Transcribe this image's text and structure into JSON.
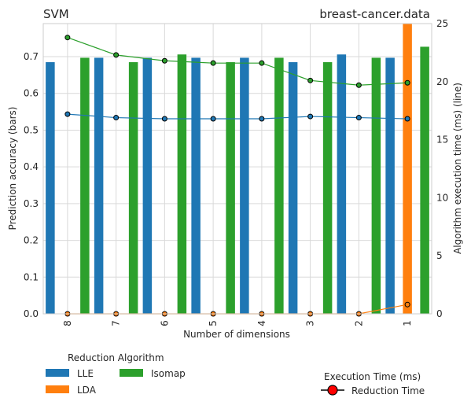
{
  "chart_data": {
    "type": "bar",
    "title_left": "SVM",
    "title_right": "breast-cancer.data",
    "xlabel": "Number of dimensions",
    "ylabel_left": "Prediction accuracy (bars)",
    "ylabel_right": "Algorithm execution time (ms) (line)",
    "categories": [
      "8",
      "7",
      "6",
      "5",
      "4",
      "3",
      "2",
      "1"
    ],
    "ylim_left": [
      0,
      0.79
    ],
    "yticks_left": [
      "0.0",
      "0.1",
      "0.2",
      "0.3",
      "0.4",
      "0.5",
      "0.6",
      "0.7"
    ],
    "ylim_right": [
      0,
      25
    ],
    "yticks_right": [
      "0",
      "5",
      "10",
      "15",
      "20",
      "25"
    ],
    "grid": true,
    "bar_series": [
      {
        "name": "LLE",
        "color": "#1f77b4",
        "values": [
          0.685,
          0.697,
          0.697,
          0.697,
          0.697,
          0.685,
          0.706,
          0.697
        ]
      },
      {
        "name": "LDA",
        "color": "#ff7f0e",
        "values": [
          0,
          0,
          0,
          0,
          0,
          0,
          0,
          0.79
        ]
      },
      {
        "name": "Isomap",
        "color": "#2ca02c",
        "values": [
          0.697,
          0.685,
          0.706,
          0.685,
          0.697,
          0.685,
          0.697,
          0.727
        ]
      }
    ],
    "line_series": [
      {
        "name": "LLE",
        "color": "#1f77b4",
        "values": [
          17.2,
          16.9,
          16.8,
          16.8,
          16.8,
          17.0,
          16.9,
          16.8
        ]
      },
      {
        "name": "LDA",
        "color": "#ff7f0e",
        "values": [
          0,
          0,
          0,
          0,
          0,
          0,
          0,
          0.8
        ]
      },
      {
        "name": "Isomap",
        "color": "#2ca02c",
        "values": [
          23.8,
          22.3,
          21.8,
          21.6,
          21.6,
          20.1,
          19.7,
          19.9
        ]
      }
    ],
    "legend_left": {
      "title": "Reduction Algorithm",
      "entries": [
        "LLE",
        "LDA",
        "Isomap"
      ],
      "placement": "bottom-left"
    },
    "legend_right": {
      "title": "Execution Time (ms)",
      "entry": "Reduction Time",
      "marker_color": "#ff0000",
      "placement": "bottom-right"
    }
  }
}
